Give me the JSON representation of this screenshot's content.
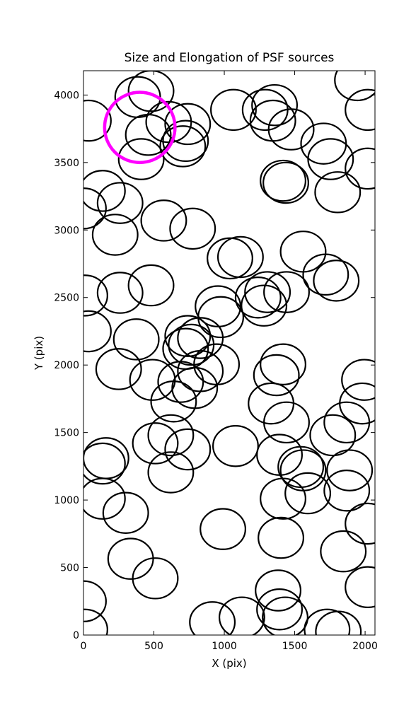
{
  "chart_data": {
    "type": "ellipse-scatter",
    "title": "Size and Elongation of PSF sources",
    "xlabel": "X (pix)",
    "ylabel": "Y (pix)",
    "xlim": [
      0,
      2070
    ],
    "ylim": [
      0,
      4180
    ],
    "xticks": [
      0,
      500,
      1000,
      1500,
      2000
    ],
    "yticks": [
      0,
      500,
      1000,
      1500,
      2000,
      2500,
      3000,
      3500,
      4000
    ],
    "series": [
      {
        "color": "#000000",
        "line_width": 2.2,
        "marker_width": 320,
        "marker_height": 300,
        "x": [
          35,
          385,
          480,
          605,
          740,
          460,
          410,
          705,
          725,
          1065,
          1290,
          1357,
          1345,
          1475,
          1945,
          2020,
          1705,
          1755,
          2020,
          1417,
          1437,
          1805,
          135,
          0,
          260,
          225,
          570,
          775,
          1040,
          1115,
          1560,
          1720,
          1795,
          10,
          260,
          480,
          955,
          975,
          1240,
          1307,
          1282,
          1442,
          35,
          375,
          740,
          830,
          765,
          725,
          945,
          830,
          250,
          490,
          1417,
          1370,
          1995,
          1980,
          1870,
          1770,
          1332,
          1442,
          690,
          790,
          640,
          160,
          135,
          510,
          620,
          740,
          620,
          1080,
          1392,
          1543,
          1560,
          1890,
          1870,
          1593,
          1417,
          135,
          300,
          990,
          1402,
          2020,
          1845,
          335,
          510,
          0,
          10,
          915,
          1125,
          1382,
          1392,
          1432,
          1730,
          1810,
          2020
        ],
        "y": [
          3810,
          3985,
          4030,
          3800,
          3785,
          3705,
          3525,
          3620,
          3660,
          3890,
          3890,
          3925,
          3810,
          3745,
          4110,
          3890,
          3640,
          3525,
          3455,
          3365,
          3350,
          3280,
          3290,
          3160,
          3200,
          2965,
          3070,
          3010,
          2790,
          2800,
          2840,
          2670,
          2625,
          2515,
          2535,
          2590,
          2435,
          2355,
          2500,
          2540,
          2440,
          2540,
          2250,
          2190,
          2215,
          2200,
          2150,
          2120,
          2005,
          1955,
          1970,
          1890,
          2005,
          1925,
          1890,
          1715,
          1575,
          1480,
          1715,
          1575,
          1875,
          1830,
          1730,
          1310,
          1270,
          1420,
          1480,
          1375,
          1205,
          1400,
          1335,
          1245,
          1220,
          1220,
          1070,
          1050,
          1010,
          1010,
          905,
          785,
          720,
          825,
          620,
          565,
          420,
          250,
          40,
          95,
          130,
          330,
          190,
          130,
          40,
          25,
          355
        ]
      },
      {
        "color": "#ff00ff",
        "line_width": 4.5,
        "marker_width": 500,
        "marker_height": 520,
        "x": [
          400
        ],
        "y": [
          3760
        ]
      }
    ]
  }
}
